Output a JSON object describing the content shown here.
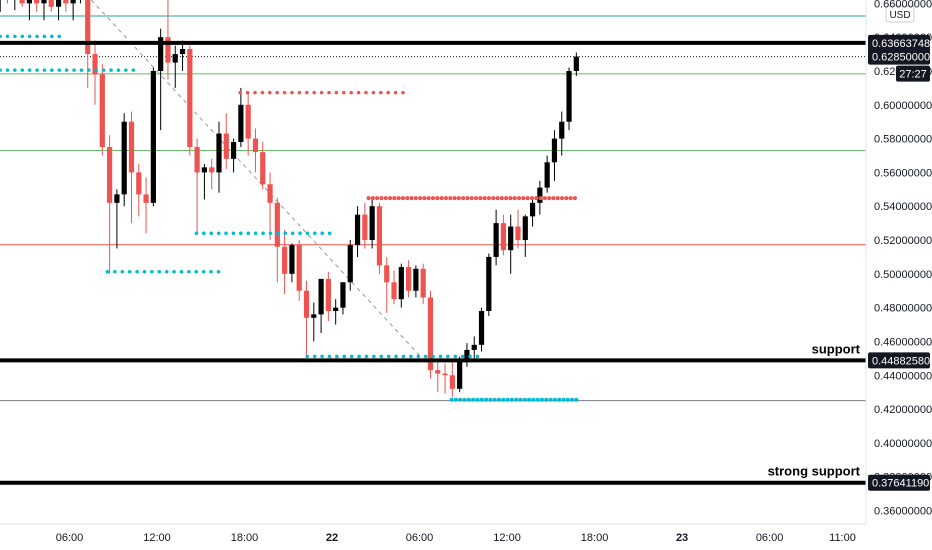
{
  "chart_data": {
    "type": "candlestick",
    "currency": "USD",
    "countdown": "27:27",
    "colors": {
      "up": "#000000",
      "down": "#ef5350",
      "teal_line": "#26a69a",
      "green_line": "#66bb6a",
      "red_line": "#ef5350",
      "gray_line": "#787b86",
      "cyan_dots": "#00bcd4",
      "red_dots": "#ef5350",
      "level": "#000000",
      "badge_bg": "#131722"
    },
    "ylim": [
      0.352,
      0.662
    ],
    "xlim_hours": [
      0,
      116
    ],
    "y_ticks": [
      "0.36000000",
      "0.38000000",
      "0.40000000",
      "0.42000000",
      "0.44000000",
      "0.46000000",
      "0.48000000",
      "0.50000000",
      "0.52000000",
      "0.54000000",
      "0.56000000",
      "0.58000000",
      "0.60000000",
      "0.62000000",
      "0.64000000",
      "0.66000000"
    ],
    "y_tick_values": [
      0.36,
      0.38,
      0.4,
      0.42,
      0.44,
      0.46,
      0.48,
      0.5,
      0.52,
      0.54,
      0.56,
      0.58,
      0.6,
      0.62,
      0.64,
      0.66
    ],
    "x_ticks": [
      {
        "label": "06:00",
        "hour": 6,
        "bold": false
      },
      {
        "label": "12:00",
        "hour": 12,
        "bold": false
      },
      {
        "label": "18:00",
        "hour": 18,
        "bold": false
      },
      {
        "label": "22",
        "hour": 24,
        "bold": true
      },
      {
        "label": "06:00",
        "hour": 30,
        "bold": false
      },
      {
        "label": "12:00",
        "hour": 36,
        "bold": false
      },
      {
        "label": "18:00",
        "hour": 42,
        "bold": false
      },
      {
        "label": "23",
        "hour": 48,
        "bold": true
      },
      {
        "label": "06:00",
        "hour": 54,
        "bold": false
      },
      {
        "label": "11:00",
        "hour": 59,
        "bold": false
      }
    ],
    "levels": [
      {
        "name": "resistance-level",
        "price": 0.63663748,
        "label": "0.63663748",
        "annotation": ""
      },
      {
        "name": "support-level",
        "price": 0.4488258,
        "label": "0.44882580",
        "annotation": "support"
      },
      {
        "name": "strong-support-level",
        "price": 0.3764119,
        "label": "0.37641190",
        "annotation": "strong support"
      }
    ],
    "current_price": {
      "price": 0.6285,
      "label": "0.62850000"
    },
    "thin_lines": [
      {
        "name": "teal-line",
        "price": 0.6525,
        "color": "teal_line"
      },
      {
        "name": "green-line-upper",
        "price": 0.6183,
        "color": "green_line"
      },
      {
        "name": "green-line-lower",
        "price": 0.573,
        "color": "green_line"
      },
      {
        "name": "red-line",
        "price": 0.5172,
        "color": "red_line"
      },
      {
        "name": "gray-line",
        "price": 0.425,
        "color": "gray_line"
      }
    ],
    "dotted_levels": [
      {
        "price": 0.6632,
        "x0": 12.5,
        "x1": 20.0,
        "color": "red_dots",
        "thick": false
      },
      {
        "price": 0.6405,
        "x0": -3.0,
        "x1": 5.5,
        "color": "cyan_dots",
        "thick": false
      },
      {
        "price": 0.6205,
        "x0": 0.3,
        "x1": 10.5,
        "color": "cyan_dots",
        "thick": false
      },
      {
        "price": 0.6072,
        "x0": 17.7,
        "x1": 29.0,
        "color": "red_dots",
        "thick": false
      },
      {
        "price": 0.524,
        "x0": 14.7,
        "x1": 24.2,
        "color": "cyan_dots",
        "thick": false
      },
      {
        "price": 0.5012,
        "x0": 8.6,
        "x1": 16.5,
        "color": "cyan_dots",
        "thick": false
      },
      {
        "price": 0.5448,
        "x0": 26.5,
        "x1": 40.8,
        "color": "red_dots",
        "thick": true
      },
      {
        "price": 0.4512,
        "x0": 22.3,
        "x1": 34.3,
        "color": "cyan_dots",
        "thick": false
      },
      {
        "price": 0.4255,
        "x0": 32.2,
        "x1": 40.8,
        "color": "cyan_dots",
        "thick": true
      }
    ],
    "trendline": {
      "x0": 7.5,
      "y0": 0.662,
      "x1": 30.5,
      "y1": 0.447
    },
    "candles": [
      {
        "t": -1.25,
        "o": 0.656,
        "h": 0.67,
        "l": 0.654,
        "c": 0.664
      },
      {
        "t": -0.75,
        "o": 0.664,
        "h": 0.67,
        "l": 0.656,
        "c": 0.66
      },
      {
        "t": -0.25,
        "o": 0.66,
        "h": 0.67,
        "l": 0.65,
        "c": 0.655
      },
      {
        "t": 0.25,
        "o": 0.655,
        "h": 0.66,
        "l": 0.62,
        "c": 0.64
      },
      {
        "t": 0.75,
        "o": 0.64,
        "h": 0.675,
        "l": 0.638,
        "c": 0.67
      },
      {
        "t": 1.25,
        "o": 0.665,
        "h": 0.67,
        "l": 0.655,
        "c": 0.668
      },
      {
        "t": 1.75,
        "o": 0.666,
        "h": 0.67,
        "l": 0.66,
        "c": 0.662
      },
      {
        "t": 2.25,
        "o": 0.662,
        "h": 0.666,
        "l": 0.656,
        "c": 0.664
      },
      {
        "t": 2.75,
        "o": 0.664,
        "h": 0.67,
        "l": 0.658,
        "c": 0.66
      },
      {
        "t": 3.25,
        "o": 0.66,
        "h": 0.67,
        "l": 0.65,
        "c": 0.665
      },
      {
        "t": 3.75,
        "o": 0.665,
        "h": 0.67,
        "l": 0.655,
        "c": 0.66
      },
      {
        "t": 4.25,
        "o": 0.66,
        "h": 0.67,
        "l": 0.65,
        "c": 0.665
      },
      {
        "t": 4.75,
        "o": 0.665,
        "h": 0.67,
        "l": 0.655,
        "c": 0.658
      },
      {
        "t": 5.25,
        "o": 0.658,
        "h": 0.665,
        "l": 0.65,
        "c": 0.662
      },
      {
        "t": 5.75,
        "o": 0.662,
        "h": 0.668,
        "l": 0.655,
        "c": 0.66
      },
      {
        "t": 6.25,
        "o": 0.66,
        "h": 0.665,
        "l": 0.65,
        "c": 0.663
      },
      {
        "t": 6.75,
        "o": 0.664,
        "h": 0.67,
        "l": 0.66,
        "c": 0.665
      },
      {
        "t": 7.25,
        "o": 0.665,
        "h": 0.67,
        "l": 0.61,
        "c": 0.63
      },
      {
        "t": 7.75,
        "o": 0.63,
        "h": 0.638,
        "l": 0.6,
        "c": 0.618
      },
      {
        "t": 8.25,
        "o": 0.618,
        "h": 0.624,
        "l": 0.57,
        "c": 0.575
      },
      {
        "t": 8.75,
        "o": 0.575,
        "h": 0.582,
        "l": 0.5,
        "c": 0.542
      },
      {
        "t": 9.25,
        "o": 0.542,
        "h": 0.55,
        "l": 0.515,
        "c": 0.547
      },
      {
        "t": 9.75,
        "o": 0.547,
        "h": 0.595,
        "l": 0.54,
        "c": 0.59
      },
      {
        "t": 10.25,
        "o": 0.59,
        "h": 0.596,
        "l": 0.53,
        "c": 0.56
      },
      {
        "t": 10.75,
        "o": 0.56,
        "h": 0.565,
        "l": 0.534,
        "c": 0.547
      },
      {
        "t": 11.25,
        "o": 0.547,
        "h": 0.557,
        "l": 0.524,
        "c": 0.542
      },
      {
        "t": 11.75,
        "o": 0.542,
        "h": 0.622,
        "l": 0.54,
        "c": 0.62
      },
      {
        "t": 12.25,
        "o": 0.62,
        "h": 0.645,
        "l": 0.585,
        "c": 0.64
      },
      {
        "t": 12.75,
        "o": 0.64,
        "h": 0.665,
        "l": 0.615,
        "c": 0.625
      },
      {
        "t": 13.25,
        "o": 0.625,
        "h": 0.635,
        "l": 0.61,
        "c": 0.63
      },
      {
        "t": 13.75,
        "o": 0.63,
        "h": 0.638,
        "l": 0.62,
        "c": 0.633
      },
      {
        "t": 14.25,
        "o": 0.633,
        "h": 0.635,
        "l": 0.57,
        "c": 0.575
      },
      {
        "t": 14.75,
        "o": 0.575,
        "h": 0.58,
        "l": 0.523,
        "c": 0.56
      },
      {
        "t": 15.25,
        "o": 0.56,
        "h": 0.565,
        "l": 0.544,
        "c": 0.563
      },
      {
        "t": 15.75,
        "o": 0.563,
        "h": 0.568,
        "l": 0.55,
        "c": 0.56
      },
      {
        "t": 16.25,
        "o": 0.56,
        "h": 0.59,
        "l": 0.548,
        "c": 0.583
      },
      {
        "t": 16.75,
        "o": 0.583,
        "h": 0.595,
        "l": 0.562,
        "c": 0.568
      },
      {
        "t": 17.25,
        "o": 0.568,
        "h": 0.58,
        "l": 0.56,
        "c": 0.578
      },
      {
        "t": 17.75,
        "o": 0.578,
        "h": 0.61,
        "l": 0.575,
        "c": 0.6
      },
      {
        "t": 18.25,
        "o": 0.6,
        "h": 0.608,
        "l": 0.57,
        "c": 0.58
      },
      {
        "t": 18.75,
        "o": 0.58,
        "h": 0.586,
        "l": 0.56,
        "c": 0.572
      },
      {
        "t": 19.25,
        "o": 0.572,
        "h": 0.578,
        "l": 0.55,
        "c": 0.553
      },
      {
        "t": 19.75,
        "o": 0.553,
        "h": 0.56,
        "l": 0.52,
        "c": 0.542
      },
      {
        "t": 20.25,
        "o": 0.542,
        "h": 0.545,
        "l": 0.495,
        "c": 0.516
      },
      {
        "t": 20.75,
        "o": 0.516,
        "h": 0.526,
        "l": 0.488,
        "c": 0.5
      },
      {
        "t": 21.25,
        "o": 0.5,
        "h": 0.518,
        "l": 0.495,
        "c": 0.517
      },
      {
        "t": 21.75,
        "o": 0.517,
        "h": 0.52,
        "l": 0.484,
        "c": 0.49
      },
      {
        "t": 22.25,
        "o": 0.49,
        "h": 0.496,
        "l": 0.452,
        "c": 0.474
      },
      {
        "t": 22.75,
        "o": 0.474,
        "h": 0.483,
        "l": 0.46,
        "c": 0.476
      },
      {
        "t": 23.25,
        "o": 0.476,
        "h": 0.496,
        "l": 0.465,
        "c": 0.497
      },
      {
        "t": 23.75,
        "o": 0.497,
        "h": 0.501,
        "l": 0.472,
        "c": 0.478
      },
      {
        "t": 24.25,
        "o": 0.478,
        "h": 0.485,
        "l": 0.47,
        "c": 0.48
      },
      {
        "t": 24.75,
        "o": 0.48,
        "h": 0.495,
        "l": 0.476,
        "c": 0.495
      },
      {
        "t": 25.25,
        "o": 0.495,
        "h": 0.52,
        "l": 0.49,
        "c": 0.517
      },
      {
        "t": 25.75,
        "o": 0.517,
        "h": 0.54,
        "l": 0.51,
        "c": 0.535
      },
      {
        "t": 26.25,
        "o": 0.535,
        "h": 0.542,
        "l": 0.515,
        "c": 0.52
      },
      {
        "t": 26.75,
        "o": 0.52,
        "h": 0.544,
        "l": 0.515,
        "c": 0.54
      },
      {
        "t": 27.25,
        "o": 0.54,
        "h": 0.542,
        "l": 0.5,
        "c": 0.505
      },
      {
        "t": 27.75,
        "o": 0.505,
        "h": 0.51,
        "l": 0.477,
        "c": 0.495
      },
      {
        "t": 28.25,
        "o": 0.495,
        "h": 0.502,
        "l": 0.482,
        "c": 0.485
      },
      {
        "t": 28.75,
        "o": 0.485,
        "h": 0.506,
        "l": 0.48,
        "c": 0.504
      },
      {
        "t": 29.25,
        "o": 0.504,
        "h": 0.508,
        "l": 0.486,
        "c": 0.49
      },
      {
        "t": 29.75,
        "o": 0.49,
        "h": 0.505,
        "l": 0.486,
        "c": 0.503
      },
      {
        "t": 30.25,
        "o": 0.503,
        "h": 0.506,
        "l": 0.482,
        "c": 0.486
      },
      {
        "t": 30.75,
        "o": 0.486,
        "h": 0.49,
        "l": 0.438,
        "c": 0.443
      },
      {
        "t": 31.25,
        "o": 0.443,
        "h": 0.45,
        "l": 0.43,
        "c": 0.441
      },
      {
        "t": 31.75,
        "o": 0.441,
        "h": 0.447,
        "l": 0.429,
        "c": 0.44
      },
      {
        "t": 32.25,
        "o": 0.44,
        "h": 0.448,
        "l": 0.427,
        "c": 0.432
      },
      {
        "t": 32.75,
        "o": 0.432,
        "h": 0.451,
        "l": 0.43,
        "c": 0.449
      },
      {
        "t": 33.25,
        "o": 0.449,
        "h": 0.459,
        "l": 0.445,
        "c": 0.455
      },
      {
        "t": 33.75,
        "o": 0.455,
        "h": 0.463,
        "l": 0.45,
        "c": 0.458
      },
      {
        "t": 34.25,
        "o": 0.458,
        "h": 0.48,
        "l": 0.454,
        "c": 0.478
      },
      {
        "t": 34.75,
        "o": 0.478,
        "h": 0.512,
        "l": 0.475,
        "c": 0.51
      },
      {
        "t": 35.25,
        "o": 0.51,
        "h": 0.538,
        "l": 0.505,
        "c": 0.53
      },
      {
        "t": 35.75,
        "o": 0.53,
        "h": 0.535,
        "l": 0.511,
        "c": 0.514
      },
      {
        "t": 36.25,
        "o": 0.514,
        "h": 0.535,
        "l": 0.5,
        "c": 0.528
      },
      {
        "t": 36.75,
        "o": 0.528,
        "h": 0.538,
        "l": 0.515,
        "c": 0.52
      },
      {
        "t": 37.25,
        "o": 0.52,
        "h": 0.535,
        "l": 0.51,
        "c": 0.534
      },
      {
        "t": 37.75,
        "o": 0.534,
        "h": 0.545,
        "l": 0.528,
        "c": 0.542
      },
      {
        "t": 38.25,
        "o": 0.542,
        "h": 0.555,
        "l": 0.535,
        "c": 0.551
      },
      {
        "t": 38.75,
        "o": 0.551,
        "h": 0.57,
        "l": 0.548,
        "c": 0.566
      },
      {
        "t": 39.25,
        "o": 0.566,
        "h": 0.585,
        "l": 0.555,
        "c": 0.58
      },
      {
        "t": 39.75,
        "o": 0.58,
        "h": 0.596,
        "l": 0.57,
        "c": 0.59
      },
      {
        "t": 40.25,
        "o": 0.59,
        "h": 0.622,
        "l": 0.585,
        "c": 0.62
      },
      {
        "t": 40.75,
        "o": 0.62,
        "h": 0.631,
        "l": 0.617,
        "c": 0.6285
      }
    ]
  }
}
